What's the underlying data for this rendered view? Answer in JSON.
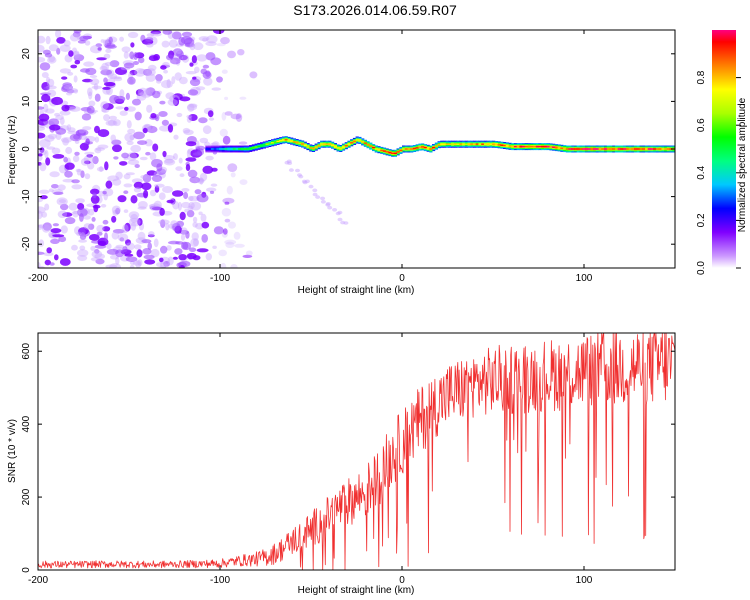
{
  "title": "S173.2026.014.06.59.R07",
  "chart_data": [
    {
      "type": "heatmap",
      "name": "spectrogram",
      "xlabel": "Height of straight line (km)",
      "ylabel": "Frequency (Hz)",
      "xlim": [
        -200,
        150
      ],
      "ylim": [
        -25,
        25
      ],
      "xticks": [
        -200,
        -100,
        0,
        100
      ],
      "yticks": [
        -20,
        -10,
        0,
        10,
        20
      ],
      "noise_region_x": [
        -200,
        -80
      ],
      "signal_track": {
        "x": [
          -108,
          -95,
          -85,
          -75,
          -70,
          -65,
          -60,
          -55,
          -50,
          -45,
          -40,
          -35,
          -30,
          -25,
          -20,
          -15,
          -10,
          -5,
          0,
          5,
          10,
          15,
          20,
          30,
          40,
          50,
          60,
          70,
          80,
          90,
          100,
          110,
          120,
          130,
          140,
          150
        ],
        "freq": [
          0,
          0,
          0,
          1,
          1.5,
          2,
          1.5,
          1,
          0,
          1,
          1,
          0,
          1,
          2,
          1,
          0,
          -0.5,
          -1,
          0,
          0,
          0.5,
          0,
          1,
          1,
          1,
          1,
          0.5,
          0.5,
          0.5,
          0,
          0,
          0,
          0,
          0,
          0,
          0
        ],
        "amp": [
          0.25,
          0.45,
          0.55,
          0.6,
          0.7,
          0.85,
          0.75,
          0.8,
          0.75,
          0.8,
          0.85,
          0.8,
          0.85,
          0.75,
          0.9,
          0.85,
          0.9,
          0.95,
          0.8,
          0.85,
          0.9,
          0.9,
          0.8,
          0.75,
          0.8,
          0.85,
          0.9,
          0.95,
          0.95,
          0.9,
          0.95,
          0.95,
          0.95,
          0.95,
          0.9,
          0.85
        ]
      },
      "colorbar": {
        "label": "Normalized spectral amplitude",
        "range": [
          0,
          1
        ],
        "ticks": [
          0.0,
          0.2,
          0.4,
          0.6,
          0.8
        ],
        "tick_labels": [
          "0.0",
          "0.2",
          "0.4",
          "0.6",
          "0.8"
        ],
        "colors": [
          "#ffffff",
          "#cc99ff",
          "#8000ff",
          "#0000ff",
          "#00c8ff",
          "#00ff80",
          "#00ff00",
          "#ffff00",
          "#ff8000",
          "#ff0000",
          "#ff0080"
        ]
      }
    },
    {
      "type": "line",
      "name": "snr",
      "xlabel": "Height of straight line (km)",
      "ylabel": "SNR (10 * v/v)",
      "xlim": [
        -200,
        150
      ],
      "ylim": [
        0,
        650
      ],
      "xticks": [
        -200,
        -100,
        0,
        100
      ],
      "yticks": [
        0,
        200,
        400,
        600
      ],
      "color": "#f03030",
      "series": [
        {
          "name": "SNR",
          "x": [
            -200,
            -180,
            -160,
            -140,
            -120,
            -100,
            -90,
            -80,
            -75,
            -70,
            -65,
            -60,
            -55,
            -50,
            -45,
            -40,
            -35,
            -30,
            -25,
            -20,
            -15,
            -10,
            -5,
            0,
            5,
            10,
            15,
            20,
            25,
            30,
            35,
            40,
            50,
            60,
            70,
            80,
            90,
            100,
            110,
            120,
            130,
            140,
            150
          ],
          "mean": [
            15,
            15,
            16,
            15,
            16,
            18,
            25,
            30,
            35,
            45,
            60,
            80,
            95,
            110,
            130,
            150,
            170,
            185,
            200,
            215,
            240,
            280,
            320,
            350,
            380,
            410,
            440,
            460,
            480,
            490,
            500,
            510,
            520,
            525,
            530,
            535,
            540,
            545,
            550,
            555,
            560,
            565,
            565
          ],
          "spread": [
            10,
            10,
            10,
            10,
            10,
            12,
            15,
            20,
            25,
            30,
            35,
            40,
            45,
            50,
            55,
            55,
            60,
            65,
            70,
            75,
            80,
            85,
            90,
            90,
            95,
            95,
            95,
            90,
            90,
            90,
            90,
            90,
            95,
            100,
            100,
            100,
            105,
            105,
            110,
            110,
            110,
            115,
            115
          ]
        }
      ]
    }
  ]
}
